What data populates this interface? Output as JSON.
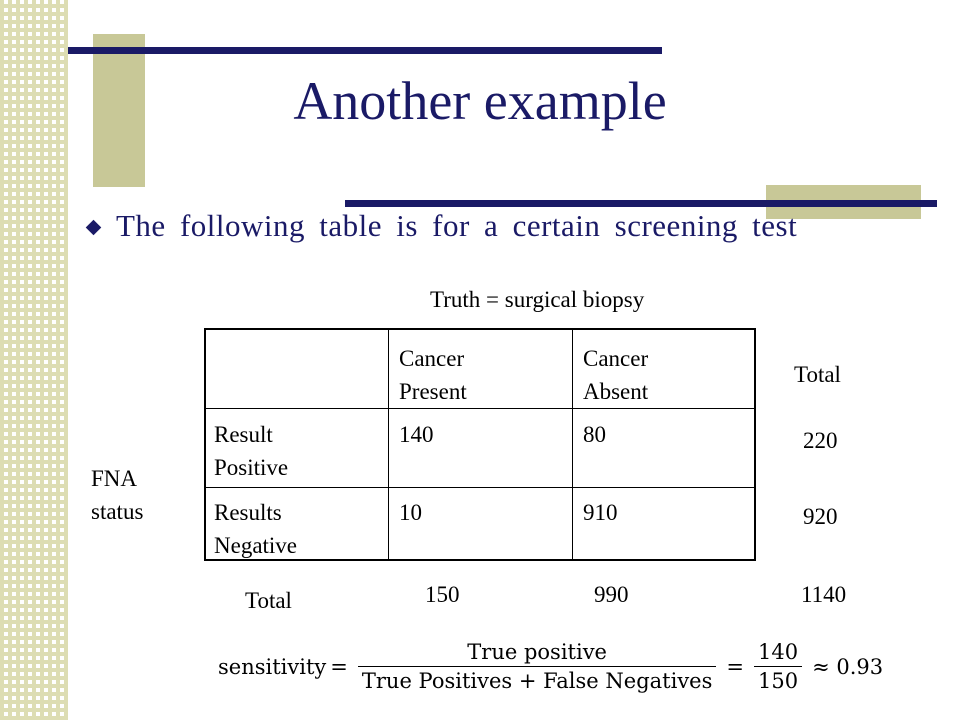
{
  "slide": {
    "title": "Another example",
    "bullet": "The following table is for a certain screening test",
    "column_header": "Truth = surgical biopsy",
    "row_header_line1": "FNA",
    "row_header_line2": "status",
    "total_col_label": "Total",
    "total_row_label": "Total"
  },
  "table": {
    "col_headers": [
      {
        "line1": "Cancer",
        "line2": "Present"
      },
      {
        "line1": "Cancer",
        "line2": "Absent"
      }
    ],
    "rows": [
      {
        "label1": "Result",
        "label2": "Positive",
        "present": "140",
        "absent": "80",
        "total": "220"
      },
      {
        "label1": "Results",
        "label2": "Negative",
        "present": "10",
        "absent": "910",
        "total": "920"
      }
    ],
    "col_totals": {
      "present": "150",
      "absent": "990",
      "grand": "1140"
    }
  },
  "formula": {
    "lhs": "sensitivity",
    "eq": "=",
    "num1": "True positive",
    "den1": "True Positives  +  False Negatives",
    "num2": "140",
    "den2": "150",
    "approx": "≈ 0.93"
  },
  "colors": {
    "accent": "#1a1a66",
    "decor": "#c8c897"
  }
}
